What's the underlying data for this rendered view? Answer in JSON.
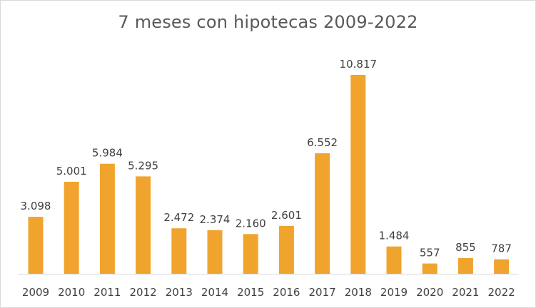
{
  "chart_data": {
    "type": "bar",
    "title": "7 meses con hipotecas 2009-2022",
    "xlabel": "",
    "ylabel": "",
    "categories": [
      "2009",
      "2010",
      "2011",
      "2012",
      "2013",
      "2014",
      "2015",
      "2016",
      "2017",
      "2018",
      "2019",
      "2020",
      "2021",
      "2022"
    ],
    "values": [
      3098,
      5001,
      5984,
      5295,
      2472,
      2374,
      2160,
      2601,
      6552,
      10817,
      1484,
      557,
      855,
      787
    ],
    "data_labels": [
      "3.098",
      "5.001",
      "5.984",
      "5.295",
      "2.472",
      "2.374",
      "2.160",
      "2.601",
      "6.552",
      "10.817",
      "1.484",
      "557",
      "855",
      "787"
    ],
    "ylim": [
      0,
      10817
    ],
    "bar_color": "#F0A42E",
    "gridlines": false,
    "legend": "none"
  }
}
